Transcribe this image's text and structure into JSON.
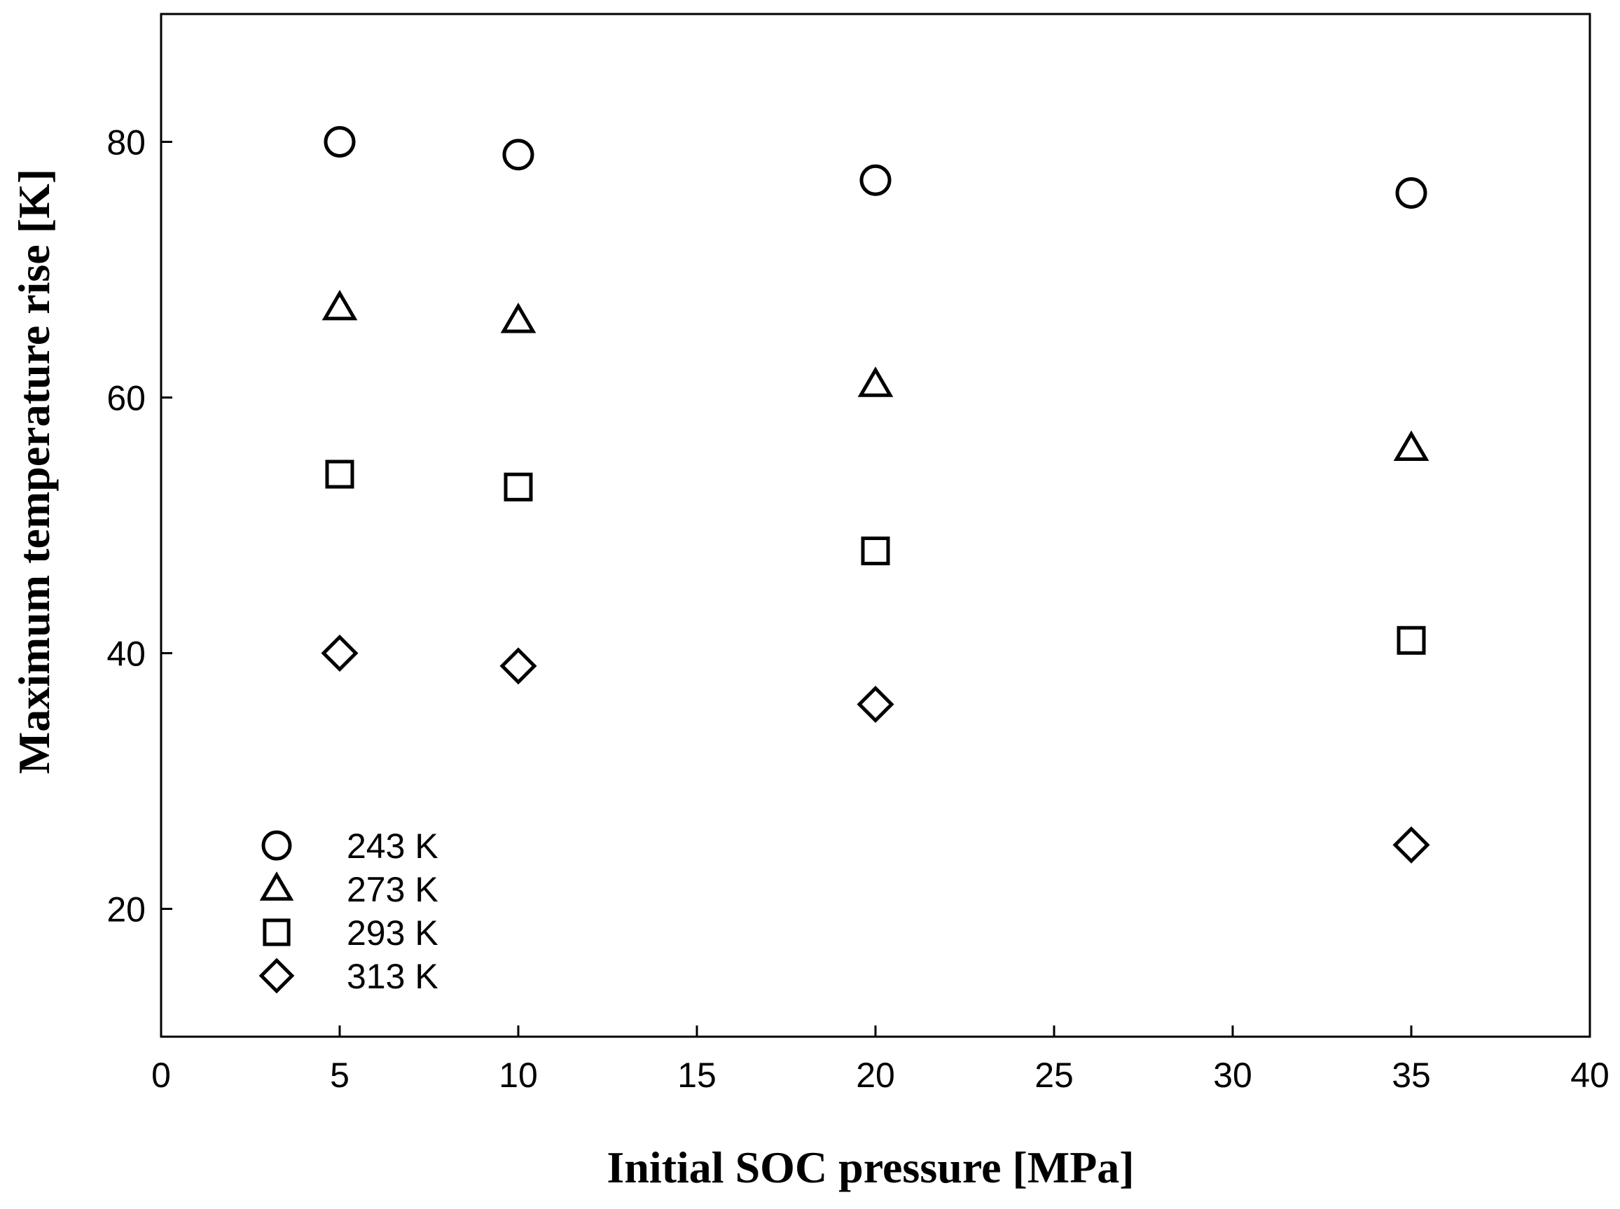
{
  "chart_data": {
    "type": "scatter",
    "title": "",
    "xlabel": "Initial SOC pressure [MPa]",
    "ylabel": "Maximum temperature rise [K]",
    "xlim": [
      0,
      40
    ],
    "ylim": [
      10,
      90
    ],
    "xticks": [
      0,
      5,
      10,
      15,
      20,
      25,
      30,
      35,
      40
    ],
    "yticks": [
      20,
      40,
      60,
      80
    ],
    "grid": false,
    "legend_position": "bottom-left",
    "x": [
      5,
      10,
      20,
      35
    ],
    "series": [
      {
        "name": "243 K",
        "marker": "circle",
        "values": [
          80,
          79,
          77,
          76
        ]
      },
      {
        "name": "273 K",
        "marker": "triangle",
        "values": [
          67,
          66,
          61,
          56
        ]
      },
      {
        "name": "293 K",
        "marker": "square",
        "values": [
          54,
          53,
          48,
          41
        ]
      },
      {
        "name": "313 K",
        "marker": "diamond",
        "values": [
          40,
          39,
          36,
          25
        ]
      }
    ],
    "colors": {
      "marker": "#000000",
      "axis": "#000000"
    }
  }
}
